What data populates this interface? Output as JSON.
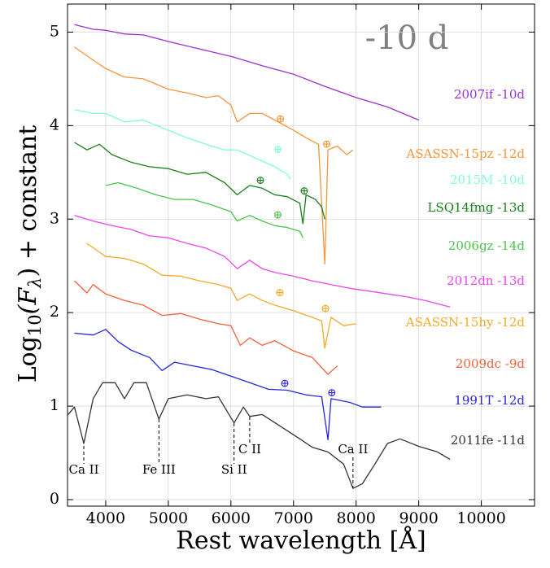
{
  "chart_data": {
    "type": "line",
    "xlabel": "Rest wavelength [Å]",
    "ylabel": [
      "Log",
      "10",
      "(F",
      "λ",
      ") + constant"
    ],
    "phase_label": "-10 d",
    "xlim": [
      3390,
      10850
    ],
    "ylim": [
      -0.07,
      5.3
    ],
    "xticks": [
      4000,
      5000,
      6000,
      7000,
      8000,
      9000,
      10000
    ],
    "yticks": [
      0,
      1,
      2,
      3,
      4,
      5
    ],
    "grid": true,
    "series": [
      {
        "name": "2007if -10d",
        "color": "#9b30d0",
        "x": [
          3500,
          3800,
          4000,
          4300,
          4600,
          5000,
          5500,
          6000,
          6500,
          7000,
          7500,
          8000,
          8500,
          9000
        ],
        "values": [
          5.08,
          5.03,
          5.02,
          4.98,
          4.97,
          4.9,
          4.82,
          4.74,
          4.64,
          4.55,
          4.42,
          4.3,
          4.2,
          4.06
        ]
      },
      {
        "name": "ASASSN-15pz -12d",
        "color": "#f7943a",
        "x": [
          3500,
          3800,
          4000,
          4300,
          4600,
          5000,
          5300,
          5600,
          5800,
          6000,
          6100,
          6300,
          6500,
          6700,
          7000,
          7200,
          7400,
          7500,
          7550,
          7700,
          7850,
          7950
        ],
        "values": [
          4.84,
          4.7,
          4.61,
          4.52,
          4.5,
          4.39,
          4.35,
          4.3,
          4.32,
          4.22,
          4.04,
          4.13,
          4.13,
          4.06,
          3.95,
          3.87,
          3.8,
          2.52,
          3.74,
          3.78,
          3.69,
          3.74
        ]
      },
      {
        "name": "2015M -10d",
        "color": "#7fffd4",
        "x": [
          3500,
          3800,
          4000,
          4300,
          4600,
          5000,
          5300,
          5600,
          5900,
          6100,
          6300,
          6500,
          6700,
          6900,
          6950
        ],
        "values": [
          4.17,
          4.13,
          4.13,
          4.04,
          4.06,
          3.95,
          3.87,
          3.8,
          3.74,
          3.74,
          3.68,
          3.62,
          3.56,
          3.48,
          3.43
        ]
      },
      {
        "name": "LSQ14fmg -13d",
        "color": "#1a7f1a",
        "x": [
          3500,
          3700,
          3900,
          4100,
          4400,
          4700,
          5000,
          5300,
          5600,
          5900,
          6100,
          6300,
          6500,
          6700,
          6900,
          7100,
          7150,
          7200,
          7350,
          7450,
          7500
        ],
        "values": [
          3.82,
          3.74,
          3.8,
          3.69,
          3.61,
          3.56,
          3.54,
          3.48,
          3.5,
          3.39,
          3.26,
          3.36,
          3.33,
          3.26,
          3.24,
          3.17,
          2.95,
          3.26,
          3.21,
          3.13,
          3.0
        ]
      },
      {
        "name": "2006gz -14d",
        "color": "#4cc44c",
        "x": [
          4000,
          4200,
          4500,
          4800,
          5100,
          5400,
          5700,
          6000,
          6100,
          6300,
          6500,
          6700,
          6900,
          7100,
          7150
        ],
        "values": [
          3.36,
          3.39,
          3.33,
          3.26,
          3.21,
          3.21,
          3.15,
          3.08,
          2.98,
          3.04,
          2.98,
          2.93,
          2.91,
          2.87,
          2.8
        ]
      },
      {
        "name": "2012dn -13d",
        "color": "#ee44ee",
        "x": [
          3500,
          3800,
          4100,
          4400,
          4700,
          5000,
          5300,
          5600,
          5900,
          6100,
          6300,
          6500,
          6700,
          7000,
          7300,
          7600,
          7900,
          8200,
          8500,
          8800,
          9100,
          9500
        ],
        "values": [
          3.04,
          2.98,
          2.93,
          2.89,
          2.82,
          2.8,
          2.74,
          2.69,
          2.6,
          2.47,
          2.56,
          2.47,
          2.43,
          2.39,
          2.34,
          2.3,
          2.26,
          2.23,
          2.2,
          2.17,
          2.13,
          2.06
        ]
      },
      {
        "name": "ASASSN-15hy -12d",
        "color": "#f9a825",
        "x": [
          3700,
          4000,
          4300,
          4600,
          4900,
          5200,
          5500,
          5800,
          6000,
          6100,
          6300,
          6500,
          6700,
          7000,
          7300,
          7450,
          7500,
          7600,
          7800,
          8000
        ],
        "values": [
          2.74,
          2.6,
          2.58,
          2.52,
          2.4,
          2.39,
          2.34,
          2.3,
          2.26,
          2.13,
          2.2,
          2.13,
          2.08,
          2.02,
          1.95,
          1.91,
          1.62,
          1.95,
          1.86,
          1.88
        ]
      },
      {
        "name": "2009dc -9d",
        "color": "#f2603a",
        "x": [
          3500,
          3700,
          3800,
          4000,
          4300,
          4600,
          4900,
          5200,
          5500,
          5800,
          6000,
          6150,
          6300,
          6500,
          6700,
          7000,
          7300,
          7550,
          7700
        ],
        "values": [
          2.34,
          2.21,
          2.3,
          2.2,
          2.13,
          2.08,
          1.97,
          1.99,
          1.93,
          1.88,
          1.86,
          1.65,
          1.73,
          1.65,
          1.7,
          1.59,
          1.52,
          1.34,
          1.43
        ]
      },
      {
        "name": "1991T -12d",
        "color": "#2525dd",
        "x": [
          3500,
          3800,
          4000,
          4200,
          4400,
          4700,
          4900,
          5100,
          5400,
          5700,
          6000,
          6300,
          6600,
          6900,
          7200,
          7450,
          7550,
          7600,
          7900,
          8100,
          8400
        ],
        "values": [
          1.78,
          1.76,
          1.82,
          1.69,
          1.6,
          1.52,
          1.38,
          1.47,
          1.43,
          1.39,
          1.32,
          1.25,
          1.18,
          1.17,
          1.12,
          1.1,
          0.64,
          1.08,
          1.04,
          0.99,
          0.99
        ]
      },
      {
        "name": "2011fe -11d",
        "color": "#333333",
        "x": [
          3400,
          3500,
          3650,
          3800,
          3950,
          4150,
          4300,
          4450,
          4650,
          4850,
          5000,
          5300,
          5600,
          5800,
          6050,
          6200,
          6300,
          6500,
          6800,
          7100,
          7300,
          7550,
          7800,
          7950,
          8100,
          8300,
          8500,
          8700,
          9000,
          9300,
          9500
        ],
        "values": [
          0.91,
          0.99,
          0.6,
          1.08,
          1.25,
          1.25,
          1.08,
          1.25,
          1.25,
          0.86,
          1.08,
          1.12,
          1.08,
          1.1,
          0.82,
          0.99,
          0.89,
          0.91,
          0.78,
          0.65,
          0.56,
          0.51,
          0.38,
          0.12,
          0.17,
          0.38,
          0.6,
          0.65,
          0.57,
          0.51,
          0.43
        ]
      }
    ],
    "line_ids": [
      {
        "label": "Ca II",
        "x": 3650
      },
      {
        "label": "Fe III",
        "x": 4850
      },
      {
        "label": "Si II",
        "x": 6050
      },
      {
        "label": "C II",
        "x": 6300
      },
      {
        "label": "Ca II",
        "x": 7950
      }
    ],
    "annotations": [
      {
        "text": "⊕",
        "x": 6790,
        "y": 4.07,
        "color": "#f7943a"
      },
      {
        "text": "⊕",
        "x": 7530,
        "y": 3.8,
        "color": "#f7943a"
      },
      {
        "text": "⊕",
        "x": 6750,
        "y": 3.74,
        "color": "#7fffd4"
      },
      {
        "text": "⊕",
        "x": 6470,
        "y": 3.41,
        "color": "#1a7f1a"
      },
      {
        "text": "⊕",
        "x": 7170,
        "y": 3.3,
        "color": "#1a7f1a"
      },
      {
        "text": "⊕",
        "x": 6750,
        "y": 3.04,
        "color": "#4cc44c"
      },
      {
        "text": "⊕",
        "x": 6780,
        "y": 2.21,
        "color": "#f9a825"
      },
      {
        "text": "⊕",
        "x": 7510,
        "y": 2.04,
        "color": "#f9a825"
      },
      {
        "text": "⊕",
        "x": 6860,
        "y": 1.24,
        "color": "#2525dd"
      },
      {
        "text": "⊕",
        "x": 7610,
        "y": 1.14,
        "color": "#2525dd"
      }
    ]
  }
}
